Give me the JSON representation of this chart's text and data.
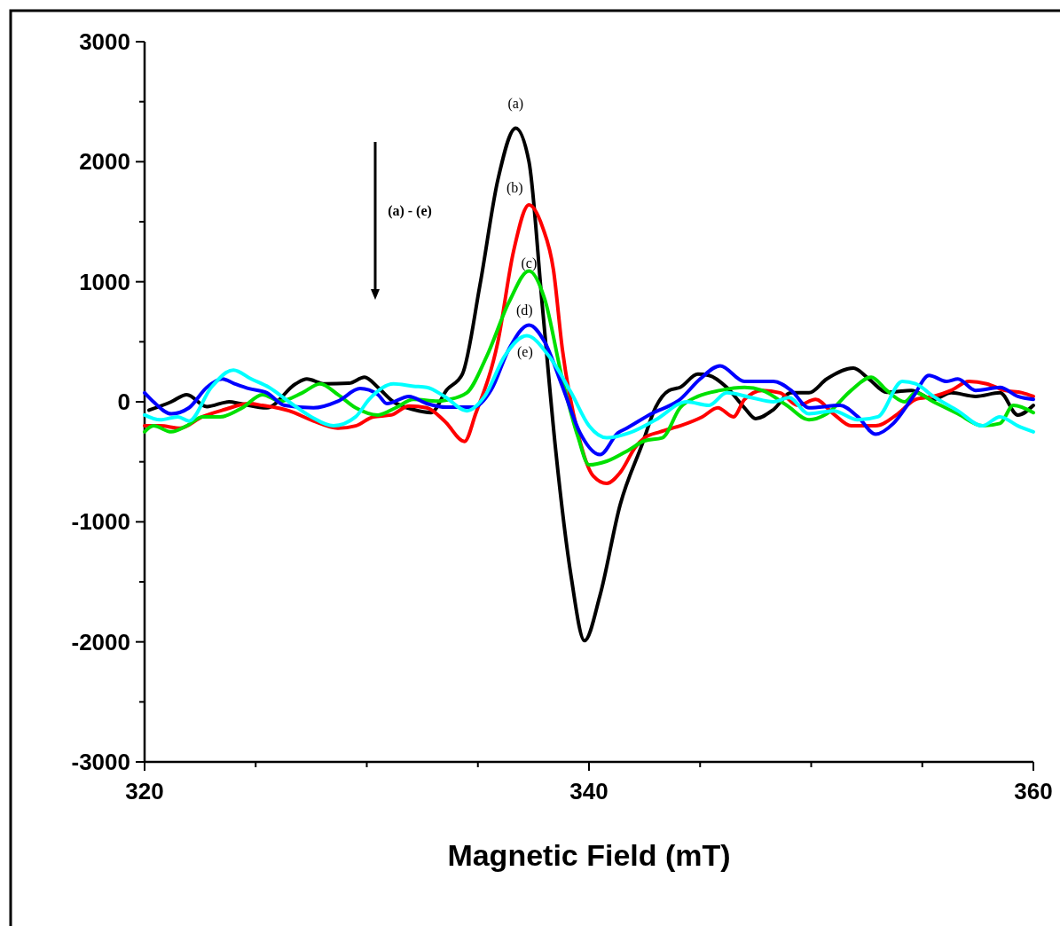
{
  "chart_data": {
    "type": "line",
    "xlabel": "Magnetic Field (mT)",
    "xlim": [
      320,
      360
    ],
    "ylim": [
      -3000,
      3000
    ],
    "xticks": [
      320,
      {
        "value": 325,
        "label": null
      },
      {
        "value": 330,
        "label": null
      },
      {
        "value": 335,
        "label": null
      },
      340,
      {
        "value": 345,
        "label": null
      },
      {
        "value": 350,
        "label": null
      },
      {
        "value": 355,
        "label": null
      },
      360
    ],
    "yticks": [
      -3000,
      {
        "value": -2500,
        "label": null
      },
      -2000,
      {
        "value": -1500,
        "label": null
      },
      -1000,
      {
        "value": -500,
        "label": null
      },
      0,
      {
        "value": 500,
        "label": null
      },
      1000,
      {
        "value": 1500,
        "label": null
      },
      2000,
      {
        "value": 2500,
        "label": null
      },
      3000
    ],
    "grid": false,
    "marker": "none",
    "line_style": "solid",
    "annotations": [
      "(a) - (e)"
    ],
    "series": [
      {
        "name": "(a)",
        "color": "#000000",
        "x": [
          320.2,
          321.2,
          321.9,
          322.8,
          323.8,
          324.3,
          325.5,
          326.8,
          327.3,
          328.1,
          329.2,
          329.9,
          330.5,
          331.2,
          332.1,
          332.9,
          333.6,
          334.3,
          335.1,
          335.9,
          336.7,
          337.3,
          337.9,
          338.5,
          339.2,
          339.8,
          340.5,
          341.4,
          342.4,
          343.0,
          343.6,
          344.1,
          344.9,
          345.4,
          346.2,
          347.0,
          347.5,
          348.3,
          349.1,
          349.9,
          350.7,
          351.9,
          352.6,
          353.4,
          354.5,
          355.5,
          356.3,
          357.4,
          358.5,
          359.3,
          360.0
        ],
        "values": [
          -70,
          0,
          60,
          -40,
          0,
          -15,
          -50,
          150,
          190,
          150,
          155,
          205,
          120,
          0,
          -65,
          -90,
          100,
          230,
          980,
          1850,
          2280,
          2000,
          800,
          -400,
          -1460,
          -1990,
          -1610,
          -860,
          -350,
          -45,
          95,
          120,
          230,
          220,
          120,
          -50,
          -140,
          -65,
          75,
          75,
          190,
          280,
          190,
          80,
          95,
          20,
          75,
          45,
          75,
          -110,
          -30
        ]
      },
      {
        "name": "(b)",
        "color": "#ff0000",
        "x": [
          320.0,
          320.7,
          321.6,
          322.6,
          323.6,
          324.7,
          325.3,
          326.5,
          327.6,
          328.7,
          329.5,
          330.3,
          331.1,
          331.9,
          332.7,
          333.5,
          334.4,
          334.9,
          335.9,
          336.6,
          337.3,
          337.9,
          338.4,
          338.8,
          339.5,
          340.2,
          340.8,
          341.4,
          342.1,
          342.5,
          343.2,
          344.1,
          345.1,
          345.8,
          346.5,
          347.0,
          347.8,
          348.6,
          349.4,
          350.2,
          351.0,
          351.8,
          352.9,
          353.9,
          354.7,
          355.5,
          356.3,
          357.1,
          357.9,
          358.7,
          359.5,
          360.0
        ],
        "values": [
          -200,
          -200,
          -220,
          -125,
          -65,
          -15,
          -30,
          -75,
          -160,
          -220,
          -200,
          -125,
          -110,
          -35,
          -50,
          -160,
          -330,
          -100,
          500,
          1250,
          1640,
          1460,
          1100,
          440,
          -260,
          -620,
          -680,
          -590,
          -375,
          -300,
          -250,
          -200,
          -125,
          -50,
          -125,
          20,
          95,
          75,
          -30,
          20,
          -100,
          -200,
          -200,
          -100,
          20,
          45,
          95,
          170,
          150,
          95,
          75,
          45
        ]
      },
      {
        "name": "(c)",
        "color": "#00e000",
        "x": [
          320.0,
          320.4,
          321.2,
          321.9,
          322.6,
          323.4,
          324.4,
          325.3,
          326.1,
          327.1,
          327.9,
          328.7,
          329.5,
          330.5,
          331.3,
          332.1,
          333.2,
          333.6,
          334.5,
          335.4,
          336.4,
          337.3,
          338.0,
          338.8,
          339.5,
          340.0,
          340.8,
          341.8,
          342.5,
          343.3,
          344.1,
          344.9,
          345.9,
          347.0,
          347.8,
          348.9,
          349.9,
          350.7,
          351.8,
          352.7,
          353.4,
          354.2,
          354.7,
          355.5,
          356.6,
          357.7,
          358.5,
          359.1,
          360.0
        ],
        "values": [
          -250,
          -200,
          -250,
          -200,
          -125,
          -125,
          -50,
          60,
          5,
          75,
          150,
          60,
          -50,
          -110,
          -50,
          20,
          5,
          15,
          75,
          380,
          830,
          1090,
          860,
          190,
          -290,
          -525,
          -495,
          -400,
          -325,
          -300,
          -50,
          45,
          95,
          120,
          95,
          -30,
          -150,
          -100,
          95,
          205,
          95,
          0,
          75,
          0,
          -100,
          -200,
          -180,
          -30,
          -90
        ]
      },
      {
        "name": "(d)",
        "color": "#0000ff",
        "x": [
          320.0,
          320.4,
          321.2,
          322.0,
          322.8,
          323.5,
          324.0,
          324.7,
          325.5,
          326.3,
          327.6,
          328.7,
          329.7,
          330.5,
          330.9,
          331.9,
          332.7,
          333.6,
          334.8,
          335.6,
          336.4,
          337.3,
          338.0,
          338.8,
          339.6,
          340.5,
          341.3,
          341.7,
          342.8,
          344.1,
          345.0,
          345.9,
          347.0,
          348.3,
          349.1,
          349.9,
          351.3,
          352.1,
          352.9,
          353.7,
          354.6,
          355.3,
          356.1,
          356.6,
          357.4,
          358.5,
          359.3,
          360.0
        ],
        "values": [
          75,
          0,
          -100,
          -50,
          120,
          190,
          155,
          110,
          75,
          -30,
          -50,
          5,
          110,
          60,
          -15,
          45,
          -15,
          -45,
          -45,
          100,
          440,
          640,
          500,
          130,
          -260,
          -440,
          -260,
          -220,
          -100,
          20,
          190,
          300,
          170,
          170,
          95,
          -50,
          -30,
          -125,
          -270,
          -180,
          45,
          220,
          170,
          190,
          95,
          120,
          45,
          20
        ]
      },
      {
        "name": "(e)",
        "color": "#00ffff",
        "x": [
          320.0,
          320.7,
          321.5,
          322.0,
          323.0,
          324.0,
          324.8,
          325.6,
          326.5,
          327.5,
          328.5,
          329.5,
          330.1,
          331.2,
          332.1,
          332.7,
          333.5,
          334.5,
          335.3,
          336.2,
          337.2,
          338.2,
          339.2,
          340.0,
          340.8,
          341.8,
          343.0,
          344.4,
          345.4,
          346.2,
          347.3,
          348.3,
          349.0,
          349.9,
          351.0,
          352.1,
          353.0,
          354.1,
          354.7,
          355.5,
          356.6,
          357.7,
          358.5,
          359.3,
          360.0
        ],
        "values": [
          -110,
          -150,
          -125,
          -160,
          120,
          265,
          190,
          120,
          0,
          -125,
          -200,
          -125,
          20,
          150,
          130,
          120,
          45,
          -75,
          45,
          380,
          550,
          380,
          75,
          -200,
          -300,
          -260,
          -150,
          0,
          -30,
          75,
          35,
          0,
          35,
          -100,
          -75,
          -150,
          -125,
          170,
          150,
          45,
          -75,
          -200,
          -125,
          -200,
          -250
        ]
      }
    ]
  }
}
